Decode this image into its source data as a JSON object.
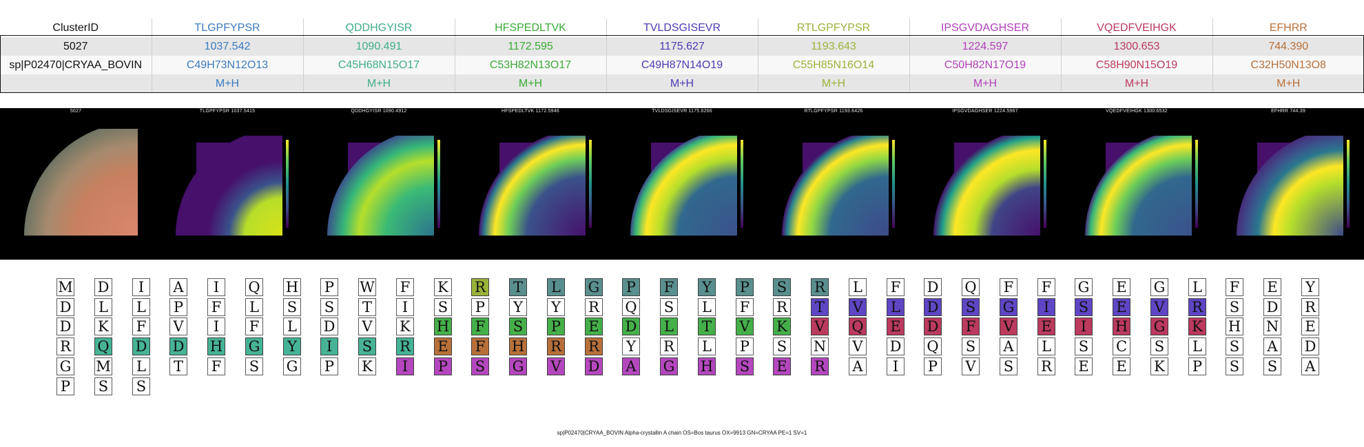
{
  "table": {
    "headers": [
      "ClusterID",
      "TLGPFYPSR",
      "QDDHGYISR",
      "HFSPEDLTVK",
      "TVLDSGISEVR",
      "RTLGPFYPSR",
      "IPSGVDAGHSER",
      "VQEDFVEIHGK",
      "EFHRR"
    ],
    "row_cluster": [
      "5027",
      "1037.542",
      "1090.491",
      "1172.595",
      "1175.627",
      "1193.643",
      "1224.597",
      "1300.653",
      "744.390"
    ],
    "row_protein": [
      "sp|P02470|CRYAA_BOVIN",
      "C49H73N12O13",
      "C45H68N15O17",
      "C53H82N13O17",
      "C49H87N14O19",
      "C55H85N16O14",
      "C50H82N17O19",
      "C58H90N15O19",
      "C32H50N13O8"
    ],
    "row_adduct": [
      "",
      "M+H",
      "M+H",
      "M+H",
      "M+H",
      "M+H",
      "M+H",
      "M+H",
      "M+H"
    ],
    "column_colors": [
      "#111111",
      "#3b7bbf",
      "#3fae86",
      "#3aaa35",
      "#4b3bb5",
      "#9ab33a",
      "#b23fbb",
      "#bb3a5e",
      "#b8703a"
    ]
  },
  "images": {
    "titles": [
      "5027",
      "TLGPFYPSR 1037.5415",
      "QDDHGYISR 1090.4912",
      "HFSPEDLTVK 1172.5946",
      "TVLDSGISEVR 1175.6266",
      "RTLGPFYPSR 1193.6426",
      "IPSGVDAGHSER 1224.5967",
      "VQEDFVEIHGK 1300.6532",
      "EFHRR 744.39"
    ],
    "colormap": "viridis"
  },
  "sequence": {
    "residues": "MDIAIQHPWFKRTLGPFYPSRLFDQFFGEGLFEYDLLPFLSSTISPYYRQSLFRTVLDSGISEVRSDRDKFVIFLDVKHFSPEDLTVKVQEDFVEIHGKHNERQDDHGYISREFHRRYRLPSNVDQSALSCSLSADGMLTFSGPKIPSGVDAGHSERAIPVSREEKPSSAPSS",
    "highlights": [
      {
        "peptide": "RTLGPFYPSR",
        "color": "#9ab33a"
      },
      {
        "peptide": "TLGPFYPSR",
        "color": "#5a8f8f"
      },
      {
        "peptide": "TVLDSGISEVR",
        "color": "#5f46c4"
      },
      {
        "peptide": "HFSPEDLTVK",
        "color": "#45b04a"
      },
      {
        "peptide": "VQEDFVEIHGK",
        "color": "#bb3a5e"
      },
      {
        "peptide": "QDDHGYISR",
        "color": "#46b396"
      },
      {
        "peptide": "EFHRR",
        "color": "#b8703a"
      },
      {
        "peptide": "IPSGVDAGHSER",
        "color": "#b447be"
      }
    ]
  },
  "footer": {
    "caption": "sp|P02470|CRYAA_BOVIN Alpha-crystallin A chain OS=Bos taurus OX=9913 GN=CRYAA PE=1 SV=1"
  }
}
